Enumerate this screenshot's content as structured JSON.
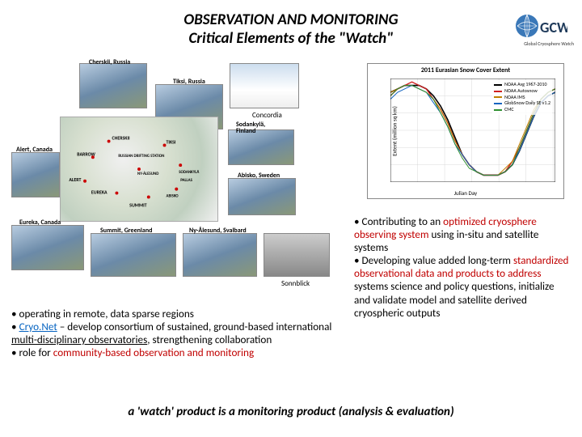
{
  "title": {
    "line1": "OBSERVATION AND MONITORING",
    "line2": "Critical Elements of the \"Watch\""
  },
  "logo": {
    "text_main": "GCW",
    "text_sub": "Global Cryosphere Watch",
    "globe_color": "#3a78b8",
    "text_color": "#1f3a5a"
  },
  "photos": {
    "p1_label": "Cherskii, Russia",
    "p2_label": "Tiksi, Russia",
    "p3_label": "",
    "p3_caption": "Concordia",
    "p4_label": "Alert, Canada",
    "p5_label": "Eureka, Canada",
    "p6_label": "Summit, Greenland",
    "p7_label": "Sodankylä, Finland",
    "p8_label": "Ny-Ålesund, Svalbard",
    "p9_label": "Abisko, Sweden",
    "p10_caption": "Sonnblick",
    "map_labels": [
      "TIKSI",
      "CHERSKII",
      "RUSSIAN DRIFTING STATION",
      "BARROW",
      "NY-ÅLESUND",
      "SODANKYLÄ",
      "PALLAS",
      "ALERT",
      "EUREKA",
      "ABISKO",
      "SUMMIT"
    ]
  },
  "chart": {
    "title": "2011 Eurasian Snow Cover Extent",
    "ylabel": "Extent (million sq km)",
    "xlabel": "Julian Day",
    "xlim": [
      0,
      365
    ],
    "ylim": [
      0,
      30
    ],
    "ytick_step": 5,
    "grid_color": "#d8d8d8",
    "background": "#ffffff",
    "legend": [
      {
        "label": "NOAA Avg 1967-2010",
        "color": "#000000"
      },
      {
        "label": "NOAA Autosnow",
        "color": "#d02020"
      },
      {
        "label": "NOAA IMS",
        "color": "#c08000"
      },
      {
        "label": "GlobSnow Daily SE v1.2",
        "color": "#1565c0"
      },
      {
        "label": "CMC",
        "color": "#2e9030"
      }
    ],
    "series": [
      {
        "color": "#000000",
        "width": 1.6,
        "values": [
          26,
          27,
          28,
          28,
          28,
          27,
          25,
          22,
          18,
          13,
          8,
          5,
          3,
          2,
          2,
          2,
          3,
          5,
          9,
          14,
          19,
          23,
          25,
          26
        ]
      },
      {
        "color": "#d02020",
        "width": 1.4,
        "values": [
          25,
          27,
          28,
          29,
          28,
          27,
          24,
          21,
          17,
          12,
          8,
          5,
          3,
          2,
          2,
          2,
          3,
          6,
          10,
          15,
          20,
          24,
          26,
          27
        ]
      },
      {
        "color": "#c08000",
        "width": 1.0,
        "values": [
          26,
          27,
          28,
          28,
          27,
          26,
          24,
          21,
          17,
          12,
          8,
          5,
          3,
          2,
          2,
          2,
          4,
          6,
          11,
          16,
          21,
          24,
          26,
          27
        ]
      },
      {
        "color": "#1565c0",
        "width": 1.0,
        "values": [
          24,
          26,
          27,
          28,
          27,
          26,
          23,
          20,
          16,
          11,
          8,
          5,
          3,
          2,
          2,
          2,
          3,
          5,
          9,
          14,
          19,
          23,
          25,
          26
        ]
      },
      {
        "color": "#2e9030",
        "width": 1.0,
        "values": [
          25,
          27,
          28,
          28,
          27,
          26,
          24,
          20,
          16,
          11,
          7,
          4,
          3,
          2,
          2,
          2,
          3,
          5,
          10,
          15,
          20,
          24,
          26,
          27
        ]
      }
    ]
  },
  "bullets_right": {
    "b1_pre": "• Contributing to an ",
    "b1_hl": "optimized cryosphere observing system",
    "b1_post": " using in-situ and satellite systems",
    "b2_pre": "• Developing value added long-term ",
    "b2_hl": "standardized observational data and products to address",
    "b2_post": " systems science and policy questions, initialize and validate model and satellite derived cryospheric outputs"
  },
  "bullets_left": {
    "b1": "• operating in remote, data sparse regions",
    "b2_pre": "• ",
    "b2_link": "Cryo.Net",
    "b2_mid": " – develop consortium of sustained, ground-based international ",
    "b2_under": "multi-disciplinary observatories",
    "b2_post": ", strengthening collaboration",
    "b3_pre": "• role for ",
    "b3_hl": "community-based observation and monitoring"
  },
  "footer": "a 'watch' product is a monitoring product  (analysis & evaluation)"
}
